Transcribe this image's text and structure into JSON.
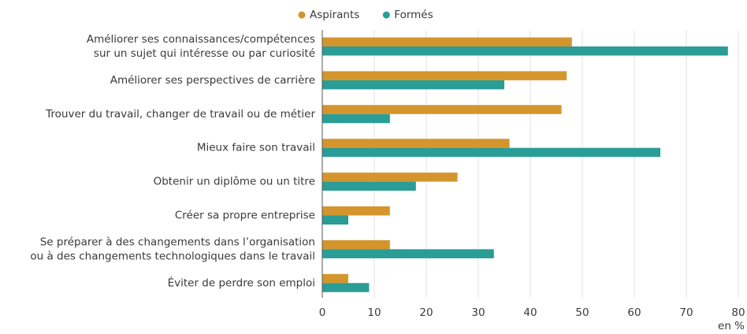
{
  "chart_data": {
    "type": "barh",
    "categories": [
      [
        "Améliorer ses connaissances/compétences",
        "sur un sujet qui intéresse ou par curiosité"
      ],
      [
        "Améliorer ses perspectives de carrière"
      ],
      [
        "Trouver du travail, changer de travail ou de métier"
      ],
      [
        "Mieux faire son travail"
      ],
      [
        "Obtenir un diplôme ou un titre"
      ],
      [
        "Créer sa propre entreprise"
      ],
      [
        "Se préparer à des changements dans l’organisation",
        "ou à des changements technologiques dans le travail"
      ],
      [
        "Éviter de perdre son emploi"
      ]
    ],
    "series": [
      {
        "name": "Aspirants",
        "color": "#d4962c",
        "values": [
          48,
          47,
          46,
          36,
          26,
          13,
          13,
          5
        ]
      },
      {
        "name": "Formés",
        "color": "#2a9d96",
        "values": [
          78,
          35,
          13,
          65,
          18,
          5,
          33,
          9
        ]
      }
    ],
    "xlim": [
      0,
      80
    ],
    "xticks": [
      0,
      10,
      20,
      30,
      40,
      50,
      60,
      70,
      80
    ],
    "x_axis_label": "en %",
    "grid": true,
    "legend": "top"
  }
}
